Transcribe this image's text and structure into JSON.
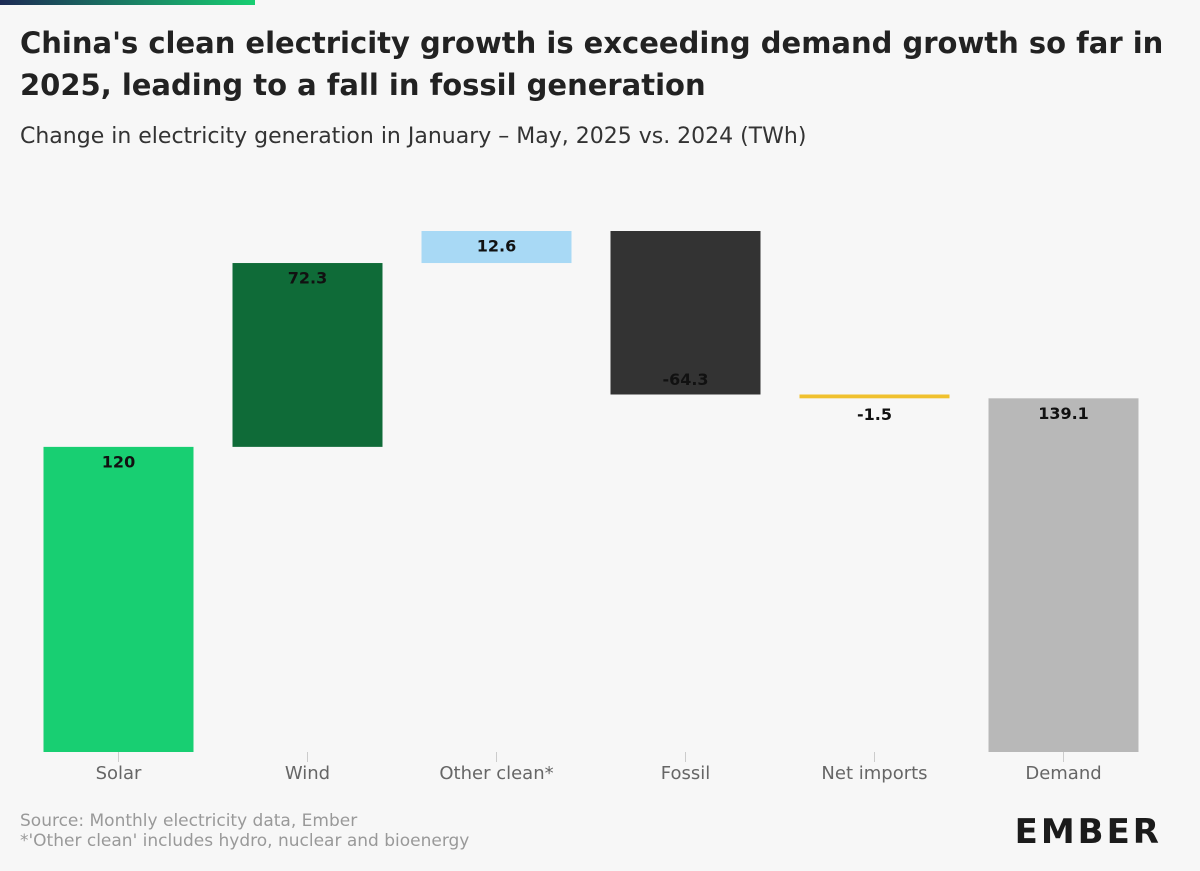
{
  "chart_data": {
    "type": "waterfall",
    "title": "China's clean electricity growth is exceeding demand growth so far in 2025, leading to a fall in fossil generation",
    "subtitle": "Change in electricity generation in January – May, 2025 vs. 2024 (TWh)",
    "categories": [
      "Solar",
      "Wind",
      "Other clean*",
      "Fossil",
      "Net imports",
      "Demand"
    ],
    "values": [
      120,
      72.3,
      12.6,
      -64.3,
      -1.5,
      139.1
    ],
    "colors": [
      "#18cf72",
      "#0f6b38",
      "#a8d9f5",
      "#333333",
      "#f0c12e",
      "#b8b8b8"
    ],
    "is_total": [
      false,
      false,
      false,
      false,
      false,
      true
    ],
    "source": "Source: Monthly electricity data, Ember",
    "note": "*'Other clean' includes hydro, nuclear and bioenergy",
    "logo": "EMBER"
  }
}
